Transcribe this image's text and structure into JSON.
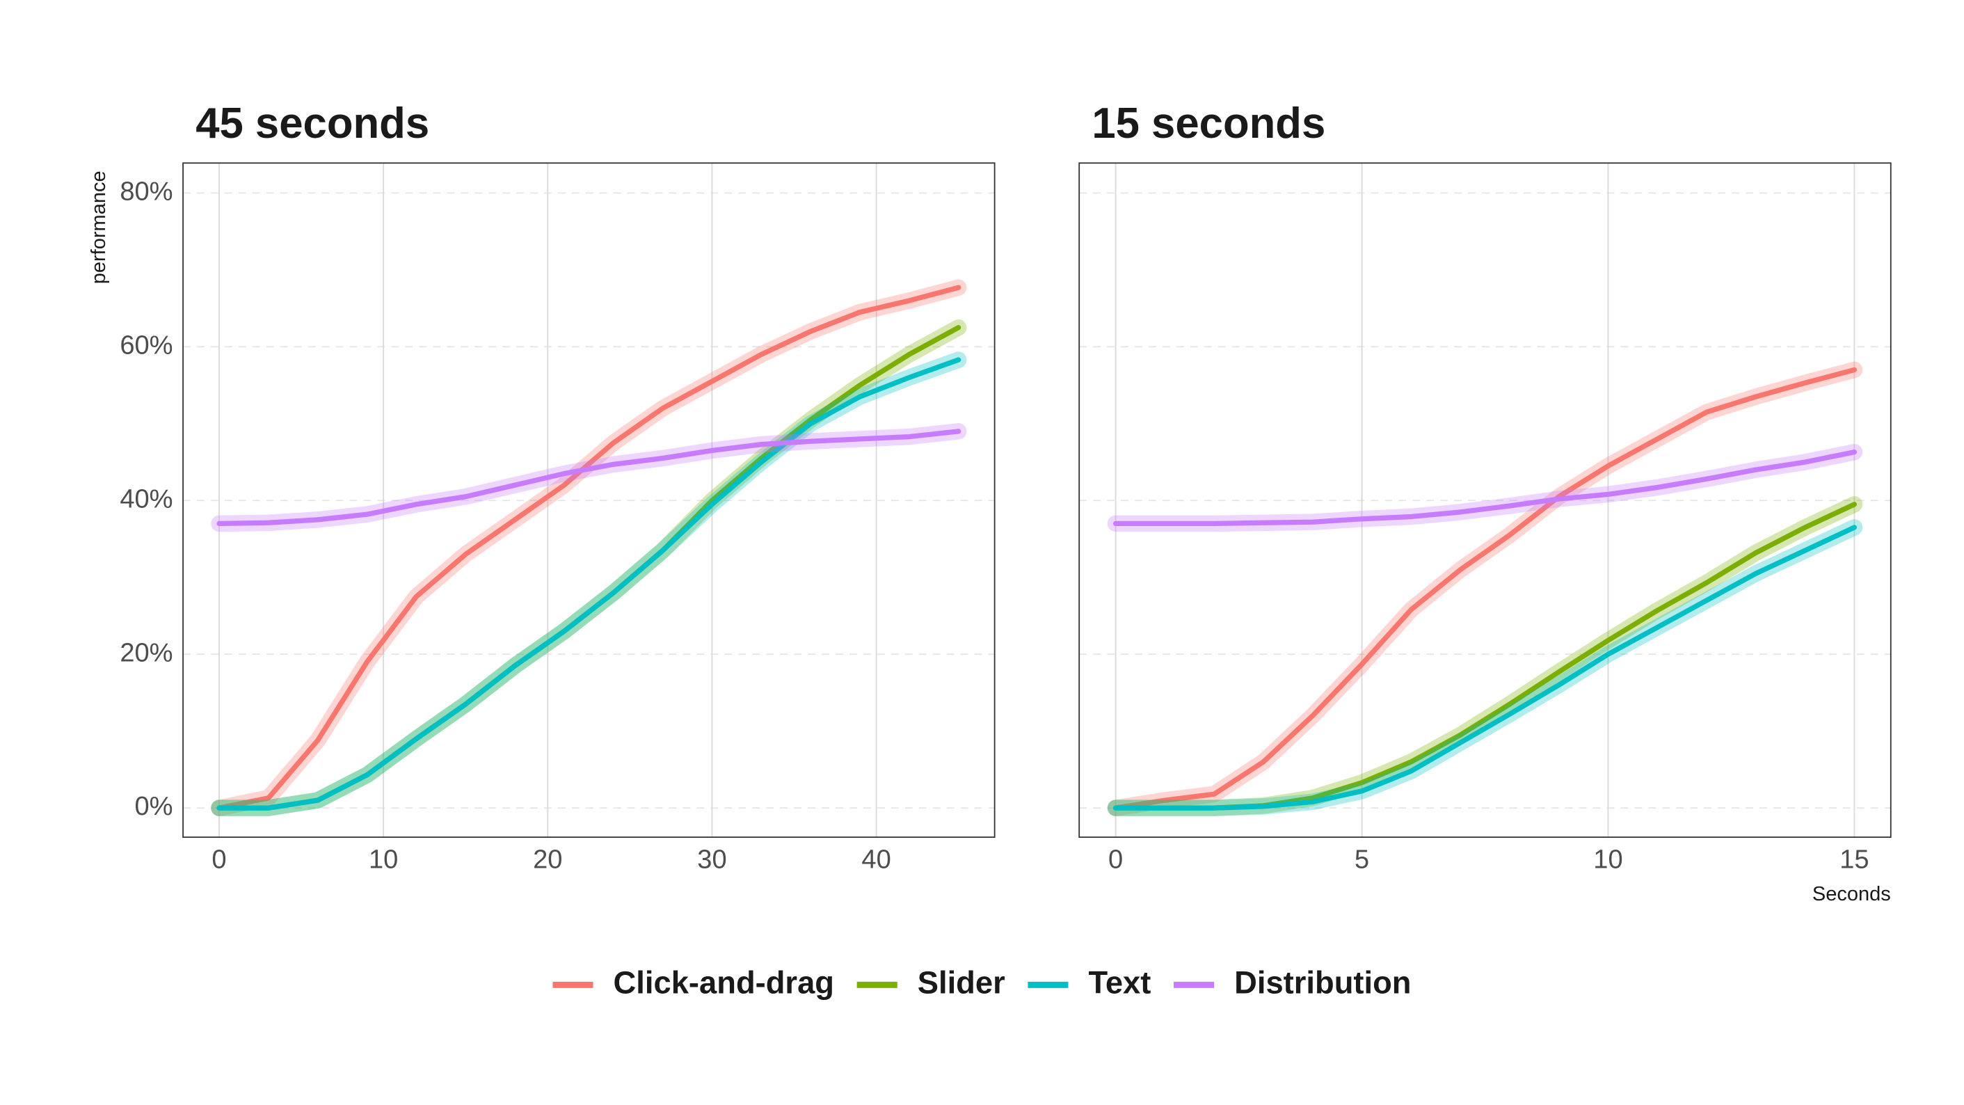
{
  "chart_data": [
    {
      "type": "line",
      "title": "45 seconds",
      "y_label": "performance",
      "legend": "bottom",
      "grid": true,
      "x": [
        0,
        3,
        6,
        9,
        12,
        15,
        18,
        21,
        24,
        27,
        30,
        33,
        36,
        39,
        42,
        45
      ],
      "xlim": [
        -2.2,
        47.2
      ],
      "xticks": [
        0,
        10,
        20,
        30,
        40
      ],
      "ylim": [
        -3.8,
        83.9
      ],
      "yticks": [
        {
          "value": 0,
          "label": "0%"
        },
        {
          "value": 20,
          "label": "20%"
        },
        {
          "value": 40,
          "label": "40%"
        },
        {
          "value": 60,
          "label": "60%"
        },
        {
          "value": 80,
          "label": "80%"
        }
      ],
      "series": [
        {
          "name": "Click-and-drag",
          "color": "#f8766d",
          "values": [
            0,
            1.3,
            8.8,
            19,
            27.5,
            33,
            37.5,
            42,
            47.5,
            52,
            55.5,
            59,
            62,
            64.5,
            66,
            67.7
          ]
        },
        {
          "name": "Slider",
          "color": "#7cae00",
          "values": [
            0,
            0,
            1,
            4.3,
            9,
            13.5,
            18.5,
            23,
            28,
            33.5,
            40,
            45.5,
            50.5,
            55,
            59,
            62.5
          ]
        },
        {
          "name": "Text",
          "color": "#00bfc4",
          "values": [
            0,
            0,
            1,
            4.3,
            9,
            13.5,
            18.5,
            23,
            28,
            33.5,
            39.5,
            45,
            50,
            53.5,
            56,
            58.3
          ]
        },
        {
          "name": "Distribution",
          "color": "#c77cff",
          "values": [
            37,
            37.1,
            37.5,
            38.2,
            39.5,
            40.5,
            42,
            43.5,
            44.7,
            45.5,
            46.5,
            47.3,
            47.7,
            48,
            48.3,
            49
          ]
        }
      ]
    },
    {
      "type": "line",
      "title": "15 seconds",
      "x_label": "Seconds",
      "grid": true,
      "x": [
        0,
        1,
        2,
        3,
        4,
        5,
        6,
        7,
        8,
        9,
        10,
        11,
        12,
        13,
        14,
        15
      ],
      "xlim": [
        -0.74,
        15.74
      ],
      "xticks": [
        0,
        5,
        10,
        15
      ],
      "ylim": [
        -3.8,
        83.9
      ],
      "yticks": [
        0,
        20,
        40,
        60,
        80
      ],
      "series": [
        {
          "color": "#f8766d",
          "values": [
            0,
            1,
            1.8,
            6,
            12,
            18.7,
            25.8,
            31,
            35.5,
            40.5,
            44.5,
            48,
            51.5,
            53.5,
            55.3,
            57
          ]
        },
        {
          "color": "#7cae00",
          "values": [
            0,
            0,
            0,
            0.3,
            1.3,
            3.3,
            6,
            9.5,
            13.5,
            17.7,
            21.8,
            25.7,
            29.3,
            33.2,
            36.5,
            39.5
          ]
        },
        {
          "color": "#00bfc4",
          "values": [
            0,
            0,
            0,
            0.2,
            0.8,
            2.2,
            4.8,
            8.5,
            12.2,
            16,
            20,
            23.5,
            27,
            30.5,
            33.5,
            36.5
          ]
        },
        {
          "color": "#c77cff",
          "values": [
            37,
            37,
            37,
            37.1,
            37.2,
            37.6,
            37.9,
            38.5,
            39.3,
            40.2,
            40.8,
            41.7,
            42.8,
            44,
            45,
            46.3
          ]
        }
      ]
    }
  ]
}
